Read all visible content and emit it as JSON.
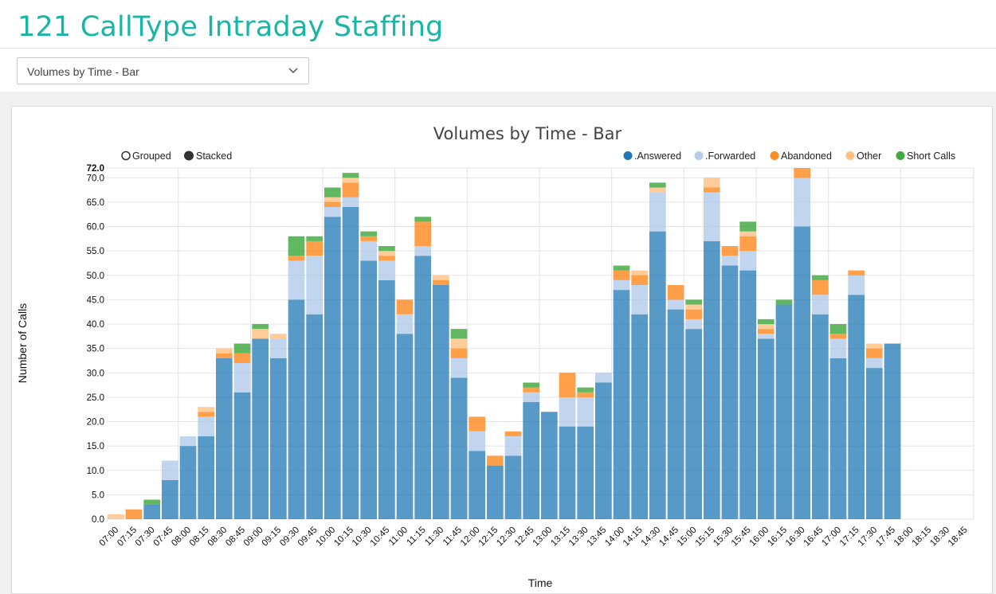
{
  "page": {
    "title": "121 CallType Intraday Staffing",
    "view_select": {
      "value": "Volumes by Time - Bar"
    }
  },
  "controls": {
    "grouped_label": "Grouped",
    "stacked_label": "Stacked",
    "selected_mode": "stacked"
  },
  "colors": {
    "answered": "#1f77b4",
    "forwarded": "#aec7e8",
    "abandoned": "#ff7f0e",
    "other": "#ffbb78",
    "short_calls": "#2ca02c",
    "title": "#19b5a5"
  },
  "chart_data": {
    "type": "bar",
    "stacked": true,
    "title": "Volumes by Time - Bar",
    "xlabel": "Time",
    "ylabel": "Number of Calls",
    "ylim": [
      0,
      72
    ],
    "y_ticks": [
      "0.0",
      "5.0",
      "10.0",
      "15.0",
      "20.0",
      "25.0",
      "30.0",
      "35.0",
      "40.0",
      "45.0",
      "50.0",
      "55.0",
      "60.0",
      "65.0",
      "70.0"
    ],
    "y_max_label": "72.0",
    "grid": true,
    "legend_position": "top-right",
    "categories": [
      "07:00",
      "07:15",
      "07:30",
      "07:45",
      "08:00",
      "08:15",
      "08:30",
      "08:45",
      "09:00",
      "09:15",
      "09:30",
      "09:45",
      "10:00",
      "10:15",
      "10:30",
      "10:45",
      "11:00",
      "11:15",
      "11:30",
      "11:45",
      "12:00",
      "12:15",
      "12:30",
      "12:45",
      "13:00",
      "13:15",
      "13:30",
      "13:45",
      "14:00",
      "14:15",
      "14:30",
      "14:45",
      "15:00",
      "15:15",
      "15:30",
      "15:45",
      "16:00",
      "16:15",
      "16:30",
      "16:45",
      "17:00",
      "17:15",
      "17:30",
      "17:45",
      "18:00",
      "18:15",
      "18:30",
      "18:45"
    ],
    "series": [
      {
        "name": ".Answered",
        "color": "#1f77b4",
        "values": [
          0,
          0,
          3,
          8,
          15,
          17,
          33,
          26,
          37,
          33,
          45,
          42,
          62,
          64,
          53,
          49,
          38,
          54,
          48,
          29,
          14,
          11,
          13,
          24,
          22,
          19,
          19,
          28,
          47,
          42,
          59,
          43,
          39,
          57,
          52,
          51,
          37,
          44,
          60,
          42,
          33,
          46,
          31,
          36,
          0,
          0,
          0,
          0
        ]
      },
      {
        "name": ".Forwarded",
        "color": "#aec7e8",
        "values": [
          0,
          0,
          0,
          4,
          2,
          4,
          0,
          6,
          0,
          4,
          8,
          12,
          2,
          2,
          4,
          4,
          4,
          2,
          0,
          4,
          4,
          0,
          4,
          2,
          0,
          6,
          6,
          2,
          2,
          6,
          8,
          2,
          2,
          10,
          2,
          4,
          1,
          0,
          10,
          4,
          4,
          4,
          2,
          0,
          0,
          0,
          0,
          0
        ]
      },
      {
        "name": "Abandoned",
        "color": "#ff7f0e",
        "values": [
          0,
          2,
          0,
          0,
          0,
          1,
          1,
          2,
          0,
          0,
          1,
          3,
          1,
          3,
          1,
          1,
          3,
          5,
          1,
          2,
          3,
          2,
          1,
          1,
          0,
          5,
          1,
          0,
          2,
          2,
          0,
          3,
          2,
          1,
          2,
          3,
          1,
          0,
          2,
          3,
          1,
          1,
          2,
          0,
          0,
          0,
          0,
          0
        ]
      },
      {
        "name": "Other",
        "color": "#ffbb78",
        "values": [
          1,
          0,
          0,
          0,
          0,
          1,
          1,
          0,
          2,
          1,
          0,
          0,
          1,
          1,
          0,
          1,
          0,
          0,
          1,
          2,
          0,
          0,
          0,
          0,
          0,
          0,
          0,
          0,
          0,
          1,
          1,
          0,
          1,
          2,
          0,
          1,
          1,
          0,
          0,
          0,
          0,
          0,
          1,
          0,
          0,
          0,
          0,
          0
        ]
      },
      {
        "name": "Short Calls",
        "color": "#2ca02c",
        "values": [
          0,
          0,
          1,
          0,
          0,
          0,
          0,
          2,
          1,
          0,
          4,
          1,
          2,
          1,
          1,
          1,
          0,
          1,
          0,
          2,
          0,
          0,
          0,
          1,
          0,
          0,
          1,
          0,
          1,
          0,
          1,
          0,
          1,
          0,
          0,
          2,
          1,
          1,
          0,
          1,
          2,
          0,
          0,
          0,
          0,
          0,
          0,
          0
        ]
      }
    ]
  }
}
